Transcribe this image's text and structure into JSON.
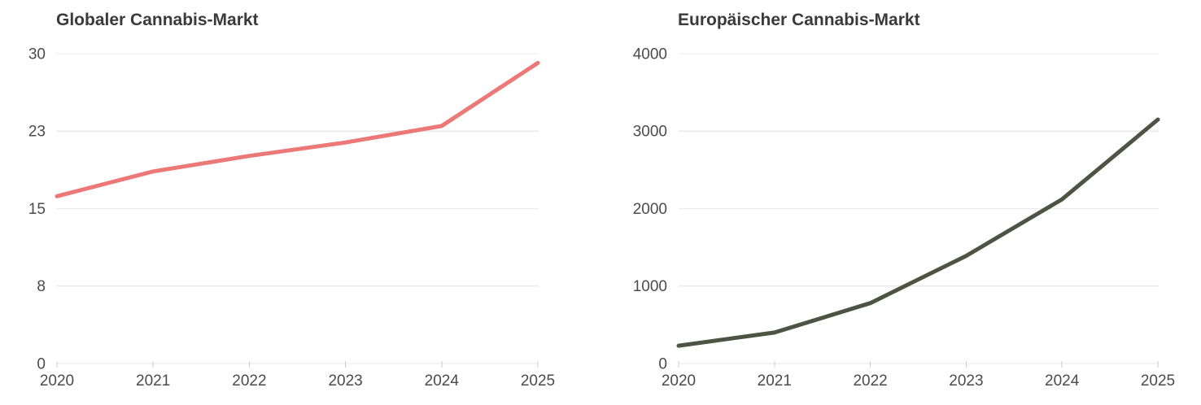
{
  "chart_data": [
    {
      "type": "line",
      "title": "Globaler Cannabis-Markt",
      "x": [
        "2020",
        "2021",
        "2022",
        "2023",
        "2024",
        "2025"
      ],
      "values": [
        16.2,
        18.6,
        20.1,
        21.4,
        23,
        29.1
      ],
      "ylim": [
        0,
        30
      ],
      "ytick_labels": [
        "0",
        "8",
        "15",
        "23",
        "30"
      ],
      "xtick_labels": [
        "2020",
        "2021",
        "2022",
        "2023",
        "2024",
        "2025"
      ],
      "line_color": "#ed7878",
      "grid": "horizontal",
      "legend": "none",
      "xlabel": "",
      "ylabel": ""
    },
    {
      "type": "line",
      "title": "Europäischer Cannabis-Markt",
      "x": [
        "2020",
        "2021",
        "2022",
        "2023",
        "2024",
        "2025"
      ],
      "values": [
        230,
        400,
        780,
        1390,
        2120,
        3150
      ],
      "ylim": [
        0,
        4000
      ],
      "ytick_labels": [
        "0",
        "1000",
        "2000",
        "3000",
        "4000"
      ],
      "xtick_labels": [
        "2020",
        "2021",
        "2022",
        "2023",
        "2024",
        "2025"
      ],
      "line_color": "#4c5443",
      "grid": "horizontal",
      "legend": "none",
      "xlabel": "",
      "ylabel": ""
    }
  ],
  "colors": {
    "background": "#ffffff",
    "gridline": "#e9e9e9",
    "tick_mark": "#cccccc",
    "tick_label": "#4b4b4b",
    "title_text": "#3a3a3a"
  }
}
